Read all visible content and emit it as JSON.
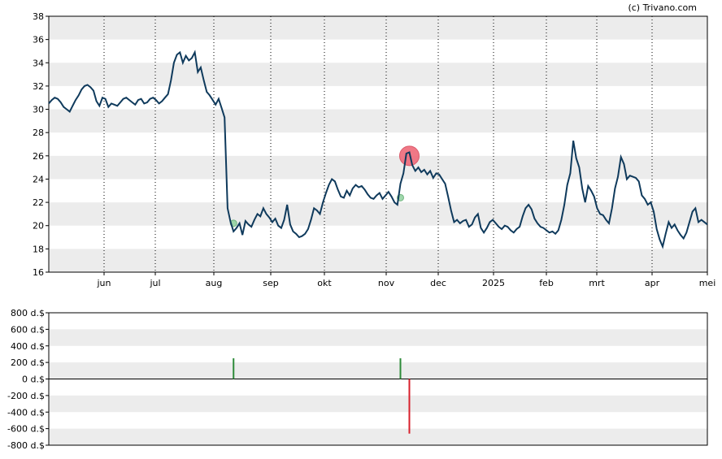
{
  "credit": "(c) Trivano.com",
  "colors": {
    "band": "#ececec",
    "price_line": "#0f3a5c",
    "buy": "#2e8b3a",
    "sell": "#d8202c",
    "buy_marker": "#8fd19e",
    "sell_marker": "#ef6a7a"
  },
  "chart_data": [
    {
      "type": "line",
      "title": "",
      "ylim": [
        16,
        38
      ],
      "y_ticks": [
        "16",
        "18",
        "20",
        "22",
        "24",
        "26",
        "28",
        "30",
        "32",
        "34",
        "36",
        "38"
      ],
      "x_ticks": [
        "jun",
        "jul",
        "aug",
        "sep",
        "okt",
        "nov",
        "dec",
        "2025",
        "feb",
        "mrt",
        "apr",
        "mei"
      ],
      "grid": "horizontal bands, dotted vertical month lines",
      "series": [
        {
          "values": [
            30.5,
            30.8,
            31.0,
            30.9,
            30.6,
            30.2,
            30.0,
            29.8,
            30.3,
            30.8,
            31.2,
            31.7,
            32.0,
            32.1,
            31.9,
            31.6,
            30.7,
            30.3,
            31.0,
            30.9,
            30.2,
            30.5,
            30.4,
            30.3,
            30.6,
            30.9,
            31.0,
            30.8,
            30.6,
            30.4,
            30.8,
            30.9,
            30.5,
            30.6,
            30.9,
            31.0,
            30.8,
            30.5,
            30.7,
            31.0,
            31.3,
            32.5,
            34.0,
            34.7,
            34.9,
            34.0,
            34.6,
            34.2,
            34.4,
            34.9,
            33.2,
            33.6,
            32.5,
            31.5,
            31.2,
            30.8,
            30.4,
            30.9,
            30.1,
            29.3,
            21.5,
            20.3,
            19.5,
            19.8,
            20.2,
            19.2,
            20.4,
            20.1,
            19.9,
            20.5,
            21.0,
            20.8,
            21.5,
            21.0,
            20.7,
            20.3,
            20.6,
            20.0,
            19.8,
            20.5,
            21.8,
            20.1,
            19.5,
            19.3,
            19.0,
            19.1,
            19.3,
            19.7,
            20.5,
            21.5,
            21.3,
            21.0,
            22.0,
            22.8,
            23.5,
            24.0,
            23.8,
            23.1,
            22.5,
            22.4,
            23.0,
            22.6,
            23.2,
            23.5,
            23.3,
            23.4,
            23.1,
            22.7,
            22.4,
            22.3,
            22.6,
            22.8,
            22.3,
            22.6,
            22.9,
            22.5,
            22.0,
            21.8,
            23.6,
            24.5,
            26.2,
            26.3,
            25.2,
            24.7,
            25.0,
            24.6,
            24.8,
            24.4,
            24.7,
            24.1,
            24.5,
            24.4,
            24.0,
            23.6,
            22.5,
            21.3,
            20.3,
            20.5,
            20.2,
            20.4,
            20.5,
            19.9,
            20.1,
            20.7,
            21.0,
            19.8,
            19.4,
            19.8,
            20.3,
            20.5,
            20.2,
            19.9,
            19.7,
            20.0,
            19.9,
            19.6,
            19.4,
            19.7,
            19.9,
            20.8,
            21.5,
            21.8,
            21.4,
            20.6,
            20.2,
            19.9,
            19.8,
            19.6,
            19.4,
            19.5,
            19.3,
            19.6,
            20.5,
            21.8,
            23.5,
            24.5,
            27.3,
            25.8,
            25.0,
            23.2,
            22.0,
            23.4,
            23.0,
            22.5,
            21.5,
            21.0,
            20.9,
            20.5,
            20.2,
            21.5,
            23.2,
            24.2,
            25.9,
            25.3,
            24.0,
            24.3,
            24.2,
            24.1,
            23.8,
            22.6,
            22.3,
            21.8,
            22.0,
            21.2,
            19.7,
            18.8,
            18.2,
            19.3,
            20.3,
            19.8,
            20.1,
            19.6,
            19.2,
            18.9,
            19.4,
            20.3,
            21.2,
            21.5,
            20.3,
            20.5,
            20.3,
            20.1
          ]
        }
      ],
      "markers": [
        {
          "kind": "buy",
          "x_index": 62,
          "value": 20.2
        },
        {
          "kind": "buy",
          "x_index": 118,
          "value": 22.4
        },
        {
          "kind": "sell",
          "x_index": 121,
          "value": 26.0
        }
      ]
    },
    {
      "type": "bar",
      "title": "",
      "ylim": [
        -800,
        800
      ],
      "y_ticks": [
        "800 d.$",
        "600 d.$",
        "400 d.$",
        "200 d.$",
        "0 d.$",
        "-200 d.$",
        "-400 d.$",
        "-600 d.$",
        "-800 d.$"
      ],
      "grid": "horizontal bands",
      "bars": [
        {
          "kind": "buy",
          "x_index": 62,
          "value": 250
        },
        {
          "kind": "buy",
          "x_index": 118,
          "value": 250
        },
        {
          "kind": "sell",
          "x_index": 121,
          "value": -660
        }
      ]
    }
  ]
}
